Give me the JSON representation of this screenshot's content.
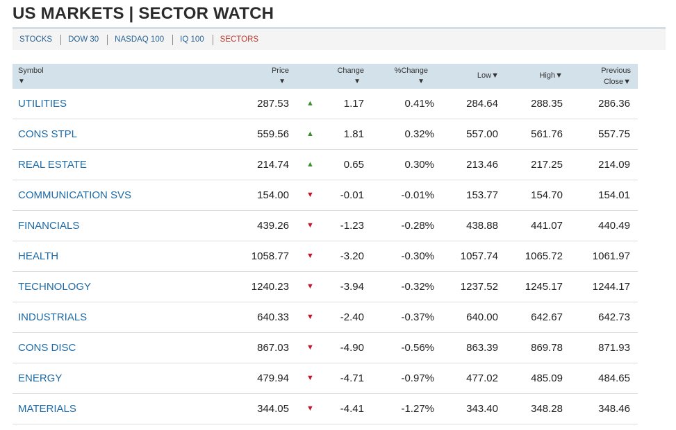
{
  "page": {
    "title": "US MARKETS | SECTOR WATCH"
  },
  "tabs": [
    {
      "label": "STOCKS",
      "active": false
    },
    {
      "label": "DOW 30",
      "active": false
    },
    {
      "label": "NASDAQ 100",
      "active": false
    },
    {
      "label": "IQ 100",
      "active": false
    },
    {
      "label": "SECTORS",
      "active": true
    }
  ],
  "table": {
    "headers": {
      "symbol": "Symbol",
      "price": "Price",
      "change": "Change",
      "pct_change": "%Change",
      "low": "Low",
      "high": "High",
      "previous_close_line1": "Previous",
      "previous_close_line2": "Close"
    },
    "sort_arrow": "▼",
    "up_arrow": "▲",
    "down_arrow": "▼",
    "colors": {
      "up": "#3e8e2f",
      "down": "#c0182b",
      "link": "#1f6aa5",
      "active_tab": "#c0392b"
    },
    "rows": [
      {
        "symbol": "UTILITIES",
        "price": "287.53",
        "direction": "up",
        "change": "1.17",
        "pct_change": "0.41%",
        "low": "284.64",
        "high": "288.35",
        "prev_close": "286.36"
      },
      {
        "symbol": "CONS STPL",
        "price": "559.56",
        "direction": "up",
        "change": "1.81",
        "pct_change": "0.32%",
        "low": "557.00",
        "high": "561.76",
        "prev_close": "557.75"
      },
      {
        "symbol": "REAL ESTATE",
        "price": "214.74",
        "direction": "up",
        "change": "0.65",
        "pct_change": "0.30%",
        "low": "213.46",
        "high": "217.25",
        "prev_close": "214.09"
      },
      {
        "symbol": "COMMUNICATION SVS",
        "price": "154.00",
        "direction": "down",
        "change": "-0.01",
        "pct_change": "-0.01%",
        "low": "153.77",
        "high": "154.70",
        "prev_close": "154.01"
      },
      {
        "symbol": "FINANCIALS",
        "price": "439.26",
        "direction": "down",
        "change": "-1.23",
        "pct_change": "-0.28%",
        "low": "438.88",
        "high": "441.07",
        "prev_close": "440.49"
      },
      {
        "symbol": "HEALTH",
        "price": "1058.77",
        "direction": "down",
        "change": "-3.20",
        "pct_change": "-0.30%",
        "low": "1057.74",
        "high": "1065.72",
        "prev_close": "1061.97"
      },
      {
        "symbol": "TECHNOLOGY",
        "price": "1240.23",
        "direction": "down",
        "change": "-3.94",
        "pct_change": "-0.32%",
        "low": "1237.52",
        "high": "1245.17",
        "prev_close": "1244.17"
      },
      {
        "symbol": "INDUSTRIALS",
        "price": "640.33",
        "direction": "down",
        "change": "-2.40",
        "pct_change": "-0.37%",
        "low": "640.00",
        "high": "642.67",
        "prev_close": "642.73"
      },
      {
        "symbol": "CONS DISC",
        "price": "867.03",
        "direction": "down",
        "change": "-4.90",
        "pct_change": "-0.56%",
        "low": "863.39",
        "high": "869.78",
        "prev_close": "871.93"
      },
      {
        "symbol": "ENERGY",
        "price": "479.94",
        "direction": "down",
        "change": "-4.71",
        "pct_change": "-0.97%",
        "low": "477.02",
        "high": "485.09",
        "prev_close": "484.65"
      },
      {
        "symbol": "MATERIALS",
        "price": "344.05",
        "direction": "down",
        "change": "-4.41",
        "pct_change": "-1.27%",
        "low": "343.40",
        "high": "348.28",
        "prev_close": "348.46"
      }
    ]
  }
}
